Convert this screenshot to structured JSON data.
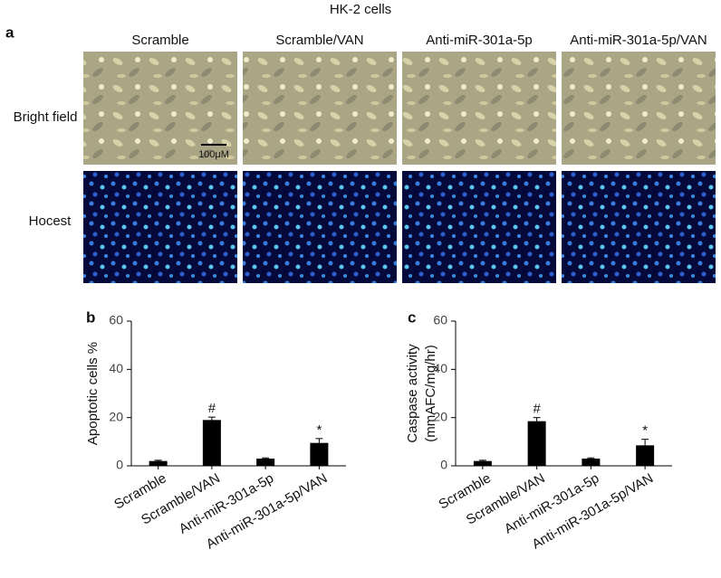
{
  "figure": {
    "title": "HK-2 cells",
    "panel_label": "a",
    "columns": [
      "Scramble",
      "Scramble/VAN",
      "Anti-miR-301a-5p",
      "Anti-miR-301a-5p/VAN"
    ],
    "rows": [
      "Bright field",
      "Hocest"
    ],
    "scale_bar": "100μM"
  },
  "chart_data": [
    {
      "type": "bar",
      "panel_label": "b",
      "ylabel": [
        "Apoptotic cells %"
      ],
      "categories": [
        "Scramble",
        "Scramble/VAN",
        "Anti-miR-301a-5p",
        "Anti-miR-301a-5p/VAN"
      ],
      "values": [
        2,
        19,
        3,
        9.5
      ],
      "errors": [
        0.3,
        1.2,
        0.3,
        1.8
      ],
      "bar_labels": [
        null,
        "#",
        null,
        "*"
      ],
      "color": "#000000",
      "ylim": [
        0,
        60
      ],
      "yticks": [
        0,
        20,
        40,
        60
      ]
    },
    {
      "type": "bar",
      "panel_label": "c",
      "ylabel": [
        "Caspase activity",
        "(mmAFC/mg/hr)"
      ],
      "categories": [
        "Scramble",
        "Scramble/VAN",
        "Anti-miR-301a-5p",
        "Anti-miR-301a-5p/VAN"
      ],
      "values": [
        2,
        18.5,
        3,
        8.5
      ],
      "errors": [
        0.3,
        1.5,
        0.3,
        2.5
      ],
      "bar_labels": [
        null,
        "#",
        null,
        "*"
      ],
      "color": "#000000",
      "ylim": [
        0,
        60
      ],
      "yticks": [
        0,
        20,
        40,
        60
      ]
    }
  ]
}
